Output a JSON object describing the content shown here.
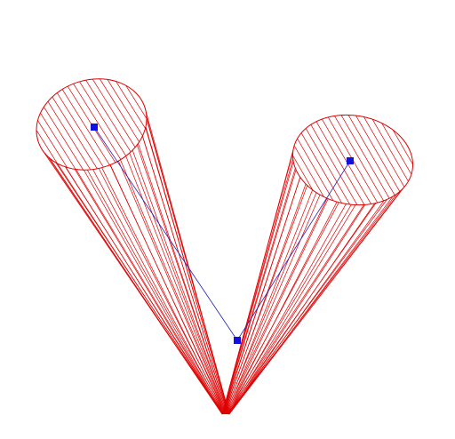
{
  "scene": {
    "background": "#ffffff",
    "wire_color": "#e00000",
    "axis_color": "#2020c0",
    "handle_color": "#1010e0",
    "objects": [
      {
        "name": "left-cylinder",
        "type": "wireframe-cylinder",
        "hatched_cap": true
      },
      {
        "name": "right-cylinder",
        "type": "wireframe-cylinder",
        "hatched_cap": true
      }
    ],
    "control_points": [
      {
        "name": "left-cap-center"
      },
      {
        "name": "right-cap-center"
      },
      {
        "name": "shared-base-point"
      }
    ]
  }
}
